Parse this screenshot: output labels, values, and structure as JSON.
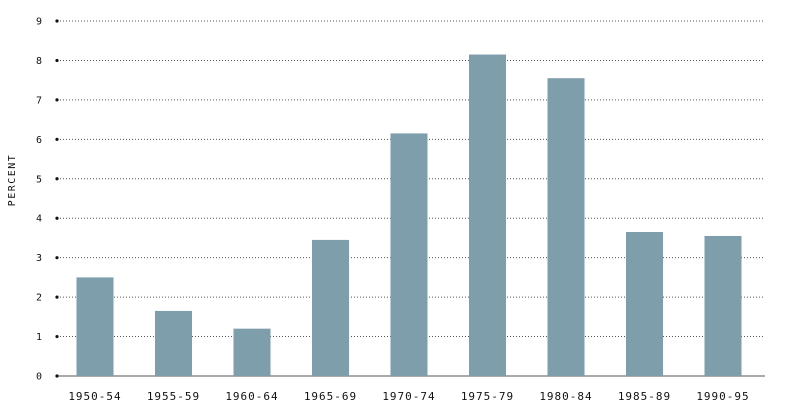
{
  "chart_data": {
    "type": "bar",
    "categories": [
      "1950-54",
      "1955-59",
      "1960-64",
      "1965-69",
      "1970-74",
      "1975-79",
      "1980-84",
      "1985-89",
      "1990-95"
    ],
    "values": [
      2.5,
      1.65,
      1.2,
      3.45,
      6.15,
      8.15,
      7.55,
      3.65,
      3.55
    ],
    "ylabel": "PERCENT",
    "xlabel": "",
    "title": "",
    "ylim": [
      0,
      9
    ],
    "yticks": [
      0,
      1,
      2,
      3,
      4,
      5,
      6,
      7,
      8,
      9
    ],
    "grid": true,
    "bar_color": "#7e9eab"
  }
}
